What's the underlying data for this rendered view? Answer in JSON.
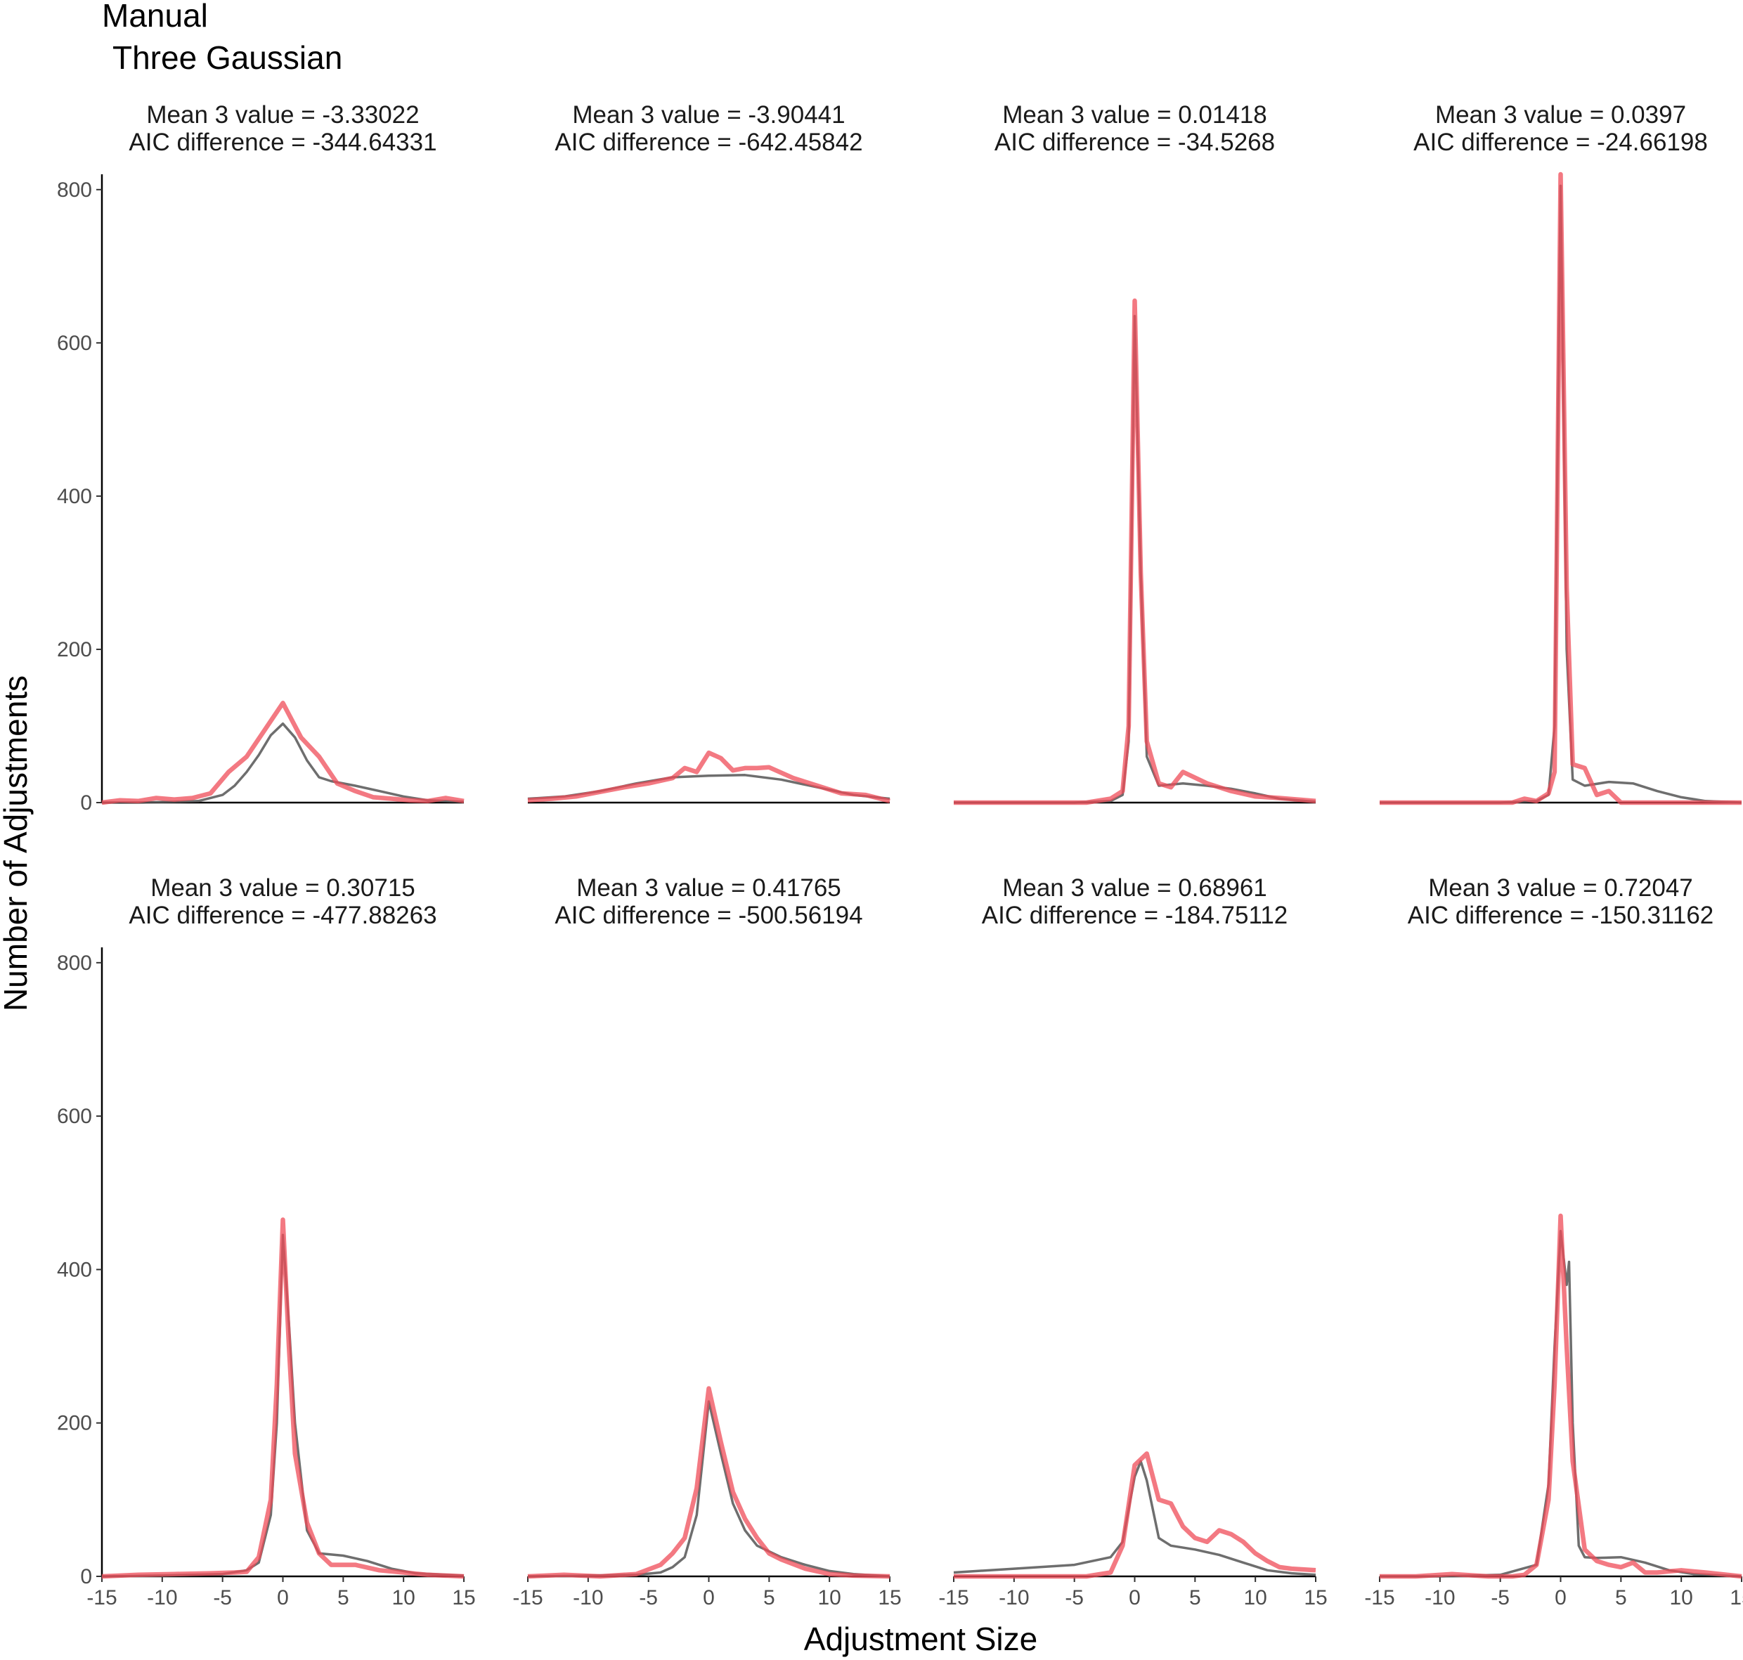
{
  "chart_data": {
    "type": "line",
    "title": "Manual",
    "subtitle": "Three Gaussian",
    "xlabel": "Adjustment Size",
    "ylabel": "Number of Adjustments",
    "xlim": [
      -15,
      15
    ],
    "ylim": [
      0,
      820
    ],
    "x_ticks": [
      -15,
      -10,
      -5,
      0,
      5,
      10,
      15
    ],
    "y_ticks": [
      0,
      200,
      400,
      600,
      800
    ],
    "grid": false,
    "legend": "none",
    "layout": "facets in 2 rows x 4 columns, shared axes",
    "series_styles": [
      {
        "role": "observed",
        "color": "#ef4c58",
        "opacity": 0.75
      },
      {
        "role": "fitted",
        "color": "#555555",
        "opacity": 0.85
      }
    ],
    "panels": [
      {
        "strip_line1": "Mean 3 value = -3.33022",
        "strip_line2": "AIC difference = -344.64331",
        "observed": {
          "x": [
            -15,
            -13.5,
            -12,
            -10.5,
            -9,
            -7.5,
            -6,
            -4.5,
            -3,
            -1.5,
            0,
            1.5,
            3,
            4.5,
            6,
            7.5,
            9,
            10.5,
            12,
            13.5,
            15
          ],
          "y": [
            0,
            3,
            2,
            6,
            4,
            6,
            12,
            40,
            60,
            95,
            130,
            85,
            60,
            25,
            15,
            7,
            5,
            3,
            2,
            6,
            2
          ]
        },
        "fitted": {
          "x": [
            -15,
            -12,
            -9,
            -7,
            -5,
            -4,
            -3,
            -2,
            -1,
            0,
            1,
            2,
            3,
            4,
            6,
            8,
            10,
            12,
            15
          ],
          "y": [
            0,
            0,
            1,
            2,
            10,
            22,
            40,
            62,
            88,
            103,
            85,
            55,
            33,
            28,
            22,
            15,
            8,
            3,
            1
          ]
        }
      },
      {
        "strip_line1": "Mean 3 value = -3.90441",
        "strip_line2": "AIC difference = -642.45842",
        "observed": {
          "x": [
            -15,
            -13,
            -11,
            -9,
            -7,
            -5,
            -3,
            -2,
            -1,
            0,
            1,
            2,
            3,
            4,
            5,
            7,
            9,
            11,
            13,
            15
          ],
          "y": [
            3,
            5,
            8,
            14,
            20,
            25,
            32,
            45,
            40,
            65,
            58,
            42,
            45,
            45,
            46,
            32,
            22,
            12,
            10,
            2
          ]
        },
        "fitted": {
          "x": [
            -15,
            -12,
            -9,
            -6,
            -3,
            0,
            3,
            6,
            9,
            12,
            15
          ],
          "y": [
            5,
            8,
            15,
            25,
            33,
            35,
            36,
            30,
            20,
            10,
            5
          ]
        }
      },
      {
        "strip_line1": "Mean 3 value = 0.01418",
        "strip_line2": "AIC difference = -34.5268",
        "observed": {
          "x": [
            -15,
            -12,
            -9,
            -6,
            -4,
            -2,
            -1,
            -0.5,
            0,
            0.5,
            1,
            2,
            3,
            4,
            6,
            8,
            10,
            12,
            15
          ],
          "y": [
            0,
            0,
            0,
            0,
            0,
            5,
            15,
            100,
            655,
            300,
            80,
            25,
            20,
            40,
            25,
            15,
            8,
            6,
            2
          ]
        },
        "fitted": {
          "x": [
            -15,
            -10,
            -5,
            -2,
            -1,
            -0.5,
            0,
            0.5,
            1,
            2,
            4,
            6,
            8,
            10,
            12,
            15
          ],
          "y": [
            0,
            0,
            0,
            2,
            10,
            80,
            635,
            300,
            60,
            22,
            25,
            22,
            18,
            12,
            5,
            1
          ]
        }
      },
      {
        "strip_line1": "Mean 3 value = 0.0397",
        "strip_line2": "AIC difference = -24.66198",
        "observed": {
          "x": [
            -15,
            -12,
            -9,
            -6,
            -4,
            -3,
            -2,
            -1,
            -0.5,
            0,
            0.5,
            1,
            2,
            3,
            4,
            5,
            6,
            8,
            10,
            12,
            15
          ],
          "y": [
            0,
            0,
            0,
            0,
            0,
            5,
            2,
            12,
            40,
            820,
            280,
            50,
            45,
            10,
            15,
            0,
            0,
            0,
            0,
            0,
            0
          ]
        },
        "fitted": {
          "x": [
            -15,
            -10,
            -5,
            -2,
            -1,
            -0.5,
            0,
            0.5,
            1,
            2,
            4,
            6,
            8,
            10,
            12,
            15
          ],
          "y": [
            0,
            0,
            0,
            2,
            10,
            100,
            805,
            200,
            30,
            22,
            27,
            25,
            15,
            7,
            2,
            0
          ]
        }
      },
      {
        "strip_line1": "Mean 3 value = 0.30715",
        "strip_line2": "AIC difference = -477.88263",
        "observed": {
          "x": [
            -15,
            -12,
            -9,
            -6,
            -4,
            -3,
            -2,
            -1,
            -0.5,
            0,
            0.5,
            1,
            2,
            3,
            4,
            6,
            8,
            10,
            12,
            15
          ],
          "y": [
            0,
            2,
            3,
            4,
            5,
            6,
            25,
            100,
            250,
            465,
            300,
            160,
            70,
            30,
            15,
            15,
            8,
            5,
            2,
            0
          ]
        },
        "fitted": {
          "x": [
            -15,
            -10,
            -5,
            -3,
            -2,
            -1,
            -0.5,
            0,
            0.5,
            1,
            2,
            3,
            5,
            7,
            9,
            11,
            15
          ],
          "y": [
            0,
            1,
            3,
            8,
            18,
            80,
            200,
            445,
            330,
            200,
            60,
            30,
            27,
            20,
            10,
            4,
            1
          ]
        }
      },
      {
        "strip_line1": "Mean 3 value = 0.41765",
        "strip_line2": "AIC difference = -500.56194",
        "observed": {
          "x": [
            -15,
            -12,
            -9,
            -6,
            -4,
            -3,
            -2,
            -1,
            0,
            1,
            2,
            3,
            4,
            5,
            6,
            8,
            10,
            12,
            15
          ],
          "y": [
            0,
            2,
            0,
            3,
            15,
            30,
            50,
            115,
            245,
            175,
            110,
            75,
            50,
            30,
            22,
            10,
            3,
            1,
            0
          ]
        },
        "fitted": {
          "x": [
            -15,
            -10,
            -6,
            -4,
            -3,
            -2,
            -1,
            0,
            1,
            2,
            3,
            4,
            6,
            8,
            10,
            12,
            15
          ],
          "y": [
            0,
            1,
            2,
            5,
            12,
            25,
            80,
            228,
            160,
            95,
            60,
            40,
            25,
            15,
            7,
            3,
            0
          ]
        }
      },
      {
        "strip_line1": "Mean 3 value = 0.68961",
        "strip_line2": "AIC difference = -184.75112",
        "observed": {
          "x": [
            -15,
            -12,
            -9,
            -6,
            -4,
            -2,
            -1,
            0,
            1,
            2,
            3,
            4,
            5,
            6,
            7,
            8,
            9,
            10,
            11,
            12,
            13,
            15
          ],
          "y": [
            0,
            0,
            0,
            0,
            0,
            5,
            40,
            145,
            160,
            100,
            95,
            65,
            50,
            45,
            60,
            55,
            45,
            30,
            20,
            12,
            10,
            8
          ]
        },
        "fitted": {
          "x": [
            -15,
            -10,
            -5,
            -2,
            -1,
            0,
            0.5,
            1,
            2,
            3,
            5,
            7,
            9,
            11,
            13,
            15
          ],
          "y": [
            5,
            10,
            15,
            25,
            45,
            130,
            150,
            125,
            50,
            40,
            35,
            28,
            18,
            8,
            4,
            2
          ]
        }
      },
      {
        "strip_line1": "Mean 3 value = 0.72047",
        "strip_line2": "AIC difference = -150.31162",
        "observed": {
          "x": [
            -15,
            -12,
            -9,
            -6,
            -4,
            -3,
            -2,
            -1,
            -0.5,
            0,
            0.5,
            1,
            2,
            3,
            4,
            5,
            6,
            7,
            8,
            10,
            12,
            15
          ],
          "y": [
            0,
            0,
            3,
            0,
            0,
            2,
            15,
            100,
            250,
            470,
            300,
            150,
            35,
            20,
            15,
            12,
            18,
            5,
            5,
            8,
            5,
            0
          ]
        },
        "fitted": {
          "x": [
            -15,
            -10,
            -5,
            -2,
            -1,
            -0.5,
            0,
            0.5,
            0.7,
            1,
            1.5,
            2,
            3,
            5,
            7,
            9,
            11,
            15
          ],
          "y": [
            0,
            0,
            2,
            15,
            120,
            300,
            450,
            380,
            410,
            200,
            40,
            25,
            24,
            25,
            18,
            8,
            3,
            0
          ]
        }
      }
    ]
  }
}
